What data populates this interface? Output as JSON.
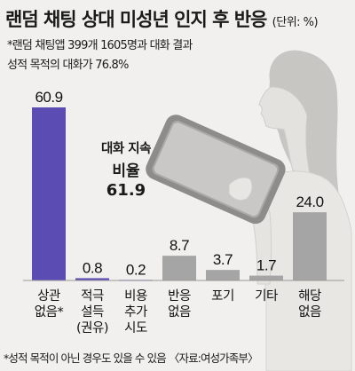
{
  "title": "랜덤 채팅 상대 미성년 인지 후 반응",
  "unit": "(단위: %)",
  "note1": "*랜덤 채팅앱 399개 1605명과 대화 결과",
  "note2": "성적 목적의 대화가 76.8%",
  "callout": {
    "line1": "대화 지속",
    "line2": "비율",
    "line3": "61.9"
  },
  "footnote": "*성적 목적이 아닌 경우도 있을 수 있음 〈자료:여성가족부〉",
  "colors": {
    "primary": "#5b4cb3",
    "secondary": "#a5a5a5",
    "background": "#f1f0ee"
  },
  "chart_data": {
    "type": "bar",
    "categories": [
      [
        "상관",
        "없음*"
      ],
      [
        "적극",
        "설득",
        "(권유)"
      ],
      [
        "비용",
        "추가",
        "시도"
      ],
      [
        "반응",
        "없음"
      ],
      [
        "포기"
      ],
      [
        "기타"
      ],
      [
        "해당",
        "없음"
      ]
    ],
    "values": [
      60.9,
      0.8,
      0.2,
      8.7,
      3.7,
      1.7,
      24.0
    ],
    "value_labels": [
      "60.9",
      "0.8",
      "0.2",
      "8.7",
      "3.7",
      "1.7",
      "24.0"
    ],
    "bar_colors": [
      "#5b4cb3",
      "#5b4cb3",
      "#5b4cb3",
      "#a5a5a5",
      "#a5a5a5",
      "#a5a5a5",
      "#a5a5a5"
    ],
    "title": "랜덤 채팅 상대 미성년 인지 후 반응",
    "ylim": [
      0,
      60.9
    ],
    "grid": false,
    "legend": "none"
  }
}
